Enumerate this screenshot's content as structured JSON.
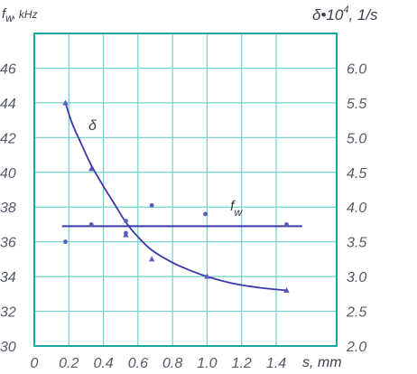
{
  "chart_data": {
    "type": "line",
    "left_axis": {
      "title_main": "f",
      "title_sub": "w",
      "title_tail": ", kHz",
      "ylim": [
        30,
        48
      ],
      "ticks": [
        {
          "v": 30,
          "label": "30"
        },
        {
          "v": 32,
          "label": "32"
        },
        {
          "v": 34,
          "label": "34"
        },
        {
          "v": 36,
          "label": "36"
        },
        {
          "v": 38,
          "label": "38"
        },
        {
          "v": 40,
          "label": "40"
        },
        {
          "v": 42,
          "label": "42"
        },
        {
          "v": 44,
          "label": "44"
        },
        {
          "v": 46,
          "label": "46"
        }
      ]
    },
    "right_axis": {
      "title_main": "δ•10",
      "title_sup": "4",
      "title_tail": ", 1/s",
      "ylim": [
        2.0,
        6.5
      ],
      "ticks": [
        {
          "v": 2.0,
          "label": "2.0"
        },
        {
          "v": 2.5,
          "label": "2.5"
        },
        {
          "v": 3.0,
          "label": "3.0"
        },
        {
          "v": 3.5,
          "label": "3.5"
        },
        {
          "v": 4.0,
          "label": "4.0"
        },
        {
          "v": 4.5,
          "label": "4.5"
        },
        {
          "v": 5.0,
          "label": "5.0"
        },
        {
          "v": 5.5,
          "label": "5.5"
        },
        {
          "v": 6.0,
          "label": "6.0"
        }
      ]
    },
    "x_axis": {
      "title": "s, mm",
      "xlim": [
        0,
        1.75
      ],
      "ticks": [
        {
          "v": 0,
          "label": "0"
        },
        {
          "v": 0.2,
          "label": "0.2"
        },
        {
          "v": 0.4,
          "label": "0.4"
        },
        {
          "v": 0.6,
          "label": "0.6"
        },
        {
          "v": 0.8,
          "label": "0.8"
        },
        {
          "v": 1.0,
          "label": "1.0"
        },
        {
          "v": 1.2,
          "label": "1.2"
        },
        {
          "v": 1.4,
          "label": "1.4"
        }
      ]
    },
    "grid": true,
    "series": [
      {
        "name": "δ",
        "axis": "right",
        "points": [
          {
            "x": 0.18,
            "y": 5.5
          },
          {
            "x": 0.33,
            "y": 4.55
          },
          {
            "x": 0.53,
            "y": 3.6
          },
          {
            "x": 0.68,
            "y": 3.25
          },
          {
            "x": 1.0,
            "y": 3.0
          },
          {
            "x": 1.46,
            "y": 2.8
          }
        ],
        "curve": [
          {
            "x": 0.18,
            "y": 5.5
          },
          {
            "x": 0.22,
            "y": 5.2
          },
          {
            "x": 0.27,
            "y": 4.92
          },
          {
            "x": 0.33,
            "y": 4.6
          },
          {
            "x": 0.4,
            "y": 4.3
          },
          {
            "x": 0.47,
            "y": 4.02
          },
          {
            "x": 0.53,
            "y": 3.78
          },
          {
            "x": 0.6,
            "y": 3.57
          },
          {
            "x": 0.68,
            "y": 3.38
          },
          {
            "x": 0.8,
            "y": 3.2
          },
          {
            "x": 0.9,
            "y": 3.09
          },
          {
            "x": 1.0,
            "y": 3.0
          },
          {
            "x": 1.15,
            "y": 2.9
          },
          {
            "x": 1.3,
            "y": 2.84
          },
          {
            "x": 1.46,
            "y": 2.8
          }
        ]
      },
      {
        "name": "f",
        "name_sub": "w",
        "axis": "left",
        "points": [
          {
            "x": 0.18,
            "y": 36.0
          },
          {
            "x": 0.33,
            "y": 37.0
          },
          {
            "x": 0.53,
            "y": 37.2
          },
          {
            "x": 0.53,
            "y": 36.5
          },
          {
            "x": 0.68,
            "y": 38.1
          },
          {
            "x": 0.99,
            "y": 37.6
          },
          {
            "x": 1.46,
            "y": 37.0
          }
        ],
        "fit_level": 36.9,
        "fit_x": [
          0.16,
          1.55
        ]
      }
    ],
    "colors": {
      "frame": "#17a8a0",
      "grid": "#6fd0cc",
      "line": "#3a3aa8",
      "marker": "#5a5ab8",
      "text": "#555a66"
    }
  }
}
